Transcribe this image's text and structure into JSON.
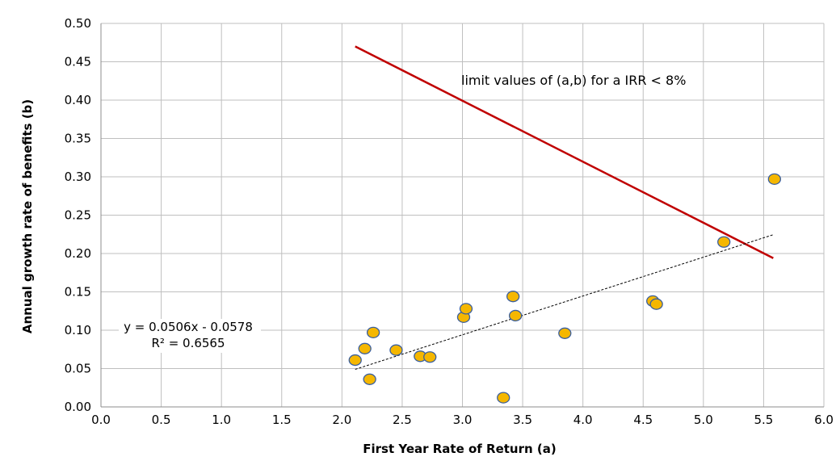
{
  "chart_data": {
    "type": "scatter",
    "title": "",
    "xlabel": "First Year Rate of Return (a)",
    "ylabel": "Annual growth rate of benefits (b)",
    "xlim": [
      0.0,
      6.0
    ],
    "ylim": [
      0.0,
      0.5
    ],
    "x_ticks": [
      "0.0",
      "0.5",
      "1.0",
      "1.5",
      "2.0",
      "2.5",
      "3.0",
      "3.5",
      "4.0",
      "4.5",
      "5.0",
      "5.5",
      "6.0"
    ],
    "y_ticks": [
      "0.00",
      "0.05",
      "0.10",
      "0.15",
      "0.20",
      "0.25",
      "0.30",
      "0.35",
      "0.40",
      "0.45",
      "0.50"
    ],
    "grid": true,
    "series": [
      {
        "marker_color": "#F5B700",
        "marker_edge": "#3A5F9F",
        "points": [
          {
            "x": 2.11,
            "y": 0.061
          },
          {
            "x": 2.19,
            "y": 0.076
          },
          {
            "x": 2.23,
            "y": 0.036
          },
          {
            "x": 2.26,
            "y": 0.097
          },
          {
            "x": 2.45,
            "y": 0.074
          },
          {
            "x": 2.65,
            "y": 0.066
          },
          {
            "x": 2.73,
            "y": 0.065
          },
          {
            "x": 3.01,
            "y": 0.117
          },
          {
            "x": 3.03,
            "y": 0.128
          },
          {
            "x": 3.34,
            "y": 0.012
          },
          {
            "x": 3.42,
            "y": 0.144
          },
          {
            "x": 3.44,
            "y": 0.119
          },
          {
            "x": 3.85,
            "y": 0.096
          },
          {
            "x": 4.58,
            "y": 0.138
          },
          {
            "x": 4.61,
            "y": 0.134
          },
          {
            "x": 5.17,
            "y": 0.215
          },
          {
            "x": 5.59,
            "y": 0.297
          }
        ]
      }
    ],
    "limit_line": {
      "color": "#C00000",
      "points": [
        {
          "x": 2.11,
          "y": 0.47
        },
        {
          "x": 5.58,
          "y": 0.194
        }
      ],
      "label": "limit values  of (a,b) for a IRR < 8%"
    },
    "trendline": {
      "color": "#000000",
      "slope": 0.0506,
      "intercept": -0.0578,
      "x_range": [
        2.11,
        5.58
      ],
      "equation": "y = 0.0506x - 0.0578",
      "r2": "R² = 0.6565"
    }
  }
}
